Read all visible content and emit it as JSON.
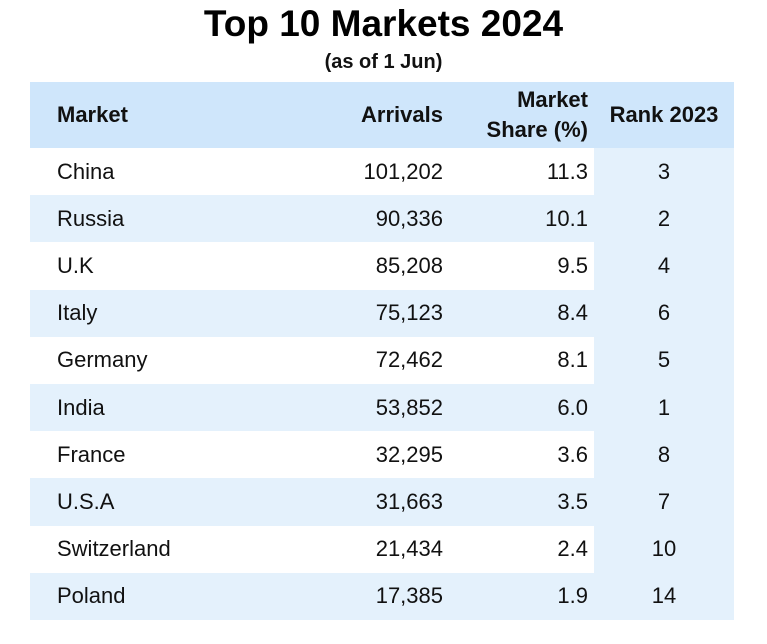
{
  "chart_data": {
    "type": "table",
    "title": "Top 10 Markets 2024",
    "subtitle": "(as of 1 Jun)",
    "headers": {
      "market": "Market",
      "arrivals": "Arrivals",
      "share_line1": "Market",
      "share_line2": "Share (%)",
      "rank": "Rank 2023"
    },
    "rows": [
      {
        "market": "China",
        "arrivals": "101,202",
        "share": "11.3",
        "rank": "3"
      },
      {
        "market": "Russia",
        "arrivals": "90,336",
        "share": "10.1",
        "rank": "2"
      },
      {
        "market": "U.K",
        "arrivals": "85,208",
        "share": "9.5",
        "rank": "4"
      },
      {
        "market": "Italy",
        "arrivals": "75,123",
        "share": "8.4",
        "rank": "6"
      },
      {
        "market": "Germany",
        "arrivals": "72,462",
        "share": "8.1",
        "rank": "5"
      },
      {
        "market": "India",
        "arrivals": "53,852",
        "share": "6.0",
        "rank": "1"
      },
      {
        "market": "France",
        "arrivals": "32,295",
        "share": "3.6",
        "rank": "8"
      },
      {
        "market": "U.S.A",
        "arrivals": "31,663",
        "share": "3.5",
        "rank": "7"
      },
      {
        "market": "Switzerland",
        "arrivals": "21,434",
        "share": "2.4",
        "rank": "10"
      },
      {
        "market": "Poland",
        "arrivals": "17,385",
        "share": "1.9",
        "rank": "14"
      }
    ]
  },
  "colors": {
    "header_bg": "#cfe6fb",
    "stripe_bg": "#e4f1fc",
    "row_bg": "#ffffff"
  }
}
